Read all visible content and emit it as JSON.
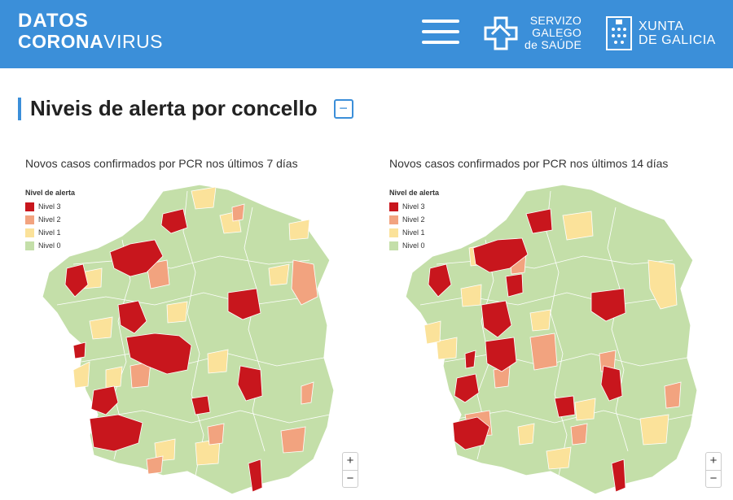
{
  "header": {
    "brand_line1": "DATOS",
    "brand_line2_bold": "CORONA",
    "brand_line2_light": "VIRUS",
    "menu_icon": "hamburger-icon",
    "sergas_line1": "SERVIZO",
    "sergas_line2": "GALEGO",
    "sergas_line3": "de SAÚDE",
    "xunta_line1": "XUNTA",
    "xunta_line2": "DE GALICIA",
    "color": "#3b8fd9"
  },
  "section": {
    "title": "Niveis de alerta por concello",
    "collapse_label": "−"
  },
  "colors": {
    "nivel3": "#c8161d",
    "nivel2": "#f2a37f",
    "nivel1": "#fbe29a",
    "nivel0": "#c4dfa9"
  },
  "maps": [
    {
      "title": "Novos casos confirmados por PCR nos últimos 7 días",
      "legend_title": "Nivel de alerta",
      "legend": [
        "Nivel 3",
        "Nivel 2",
        "Nivel 1",
        "Nivel 0"
      ],
      "zoom_in": "+",
      "zoom_out": "−"
    },
    {
      "title": "Novos casos confirmados por PCR nos últimos 14 días",
      "legend_title": "Nivel de alerta",
      "legend": [
        "Nivel 3",
        "Nivel 2",
        "Nivel 1",
        "Nivel 0"
      ],
      "zoom_in": "+",
      "zoom_out": "−"
    }
  ]
}
